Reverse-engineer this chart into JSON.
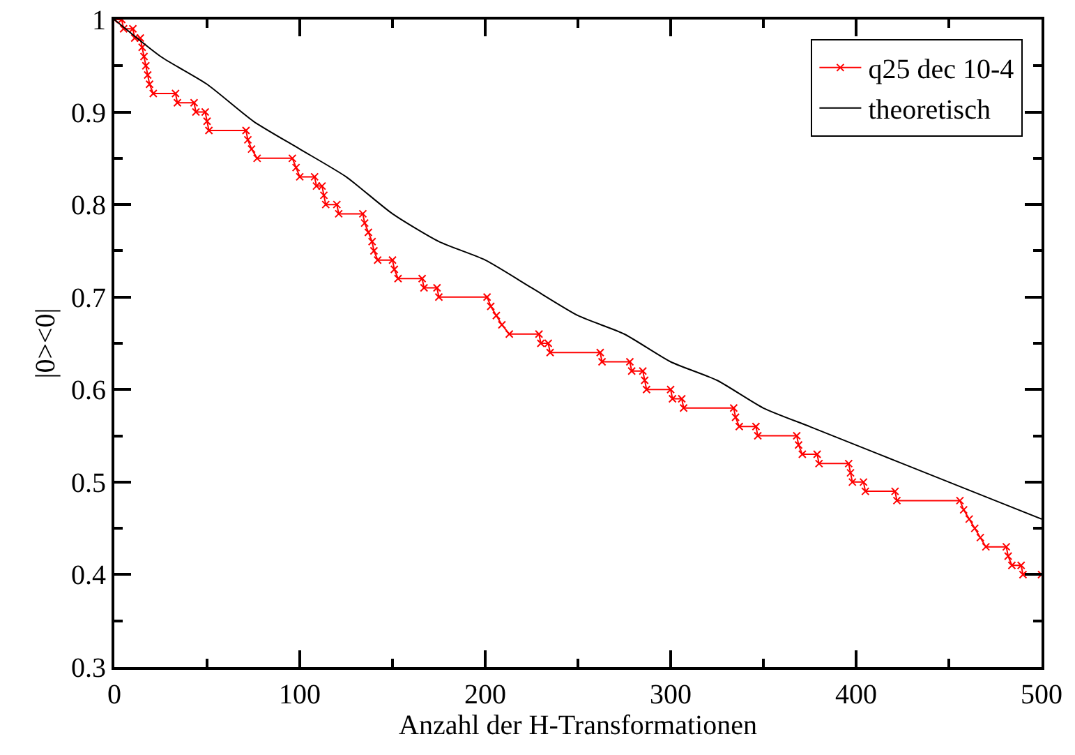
{
  "chart_data": {
    "type": "line",
    "xlabel": "Anzahl der H-Transformationen",
    "ylabel": "|0><0|",
    "xlim": [
      0,
      500
    ],
    "ylim": [
      0.3,
      1
    ],
    "xticks": [
      0,
      {
        "value": 50,
        "label": null
      },
      100,
      {
        "value": 150,
        "label": null
      },
      200,
      {
        "value": 250,
        "label": null
      },
      300,
      {
        "value": 350,
        "label": null
      },
      400,
      {
        "value": 450,
        "label": null
      },
      500
    ],
    "yticks": [
      0.3,
      {
        "value": 0.35,
        "label": null
      },
      0.4,
      {
        "value": 0.45,
        "label": null
      },
      0.5,
      {
        "value": 0.55,
        "label": null
      },
      0.6,
      {
        "value": 0.65,
        "label": null
      },
      0.7,
      {
        "value": 0.75,
        "label": null
      },
      0.8,
      {
        "value": 0.85,
        "label": null
      },
      0.9,
      {
        "value": 0.95,
        "label": null
      },
      1
    ],
    "legend": "top right",
    "series": [
      {
        "name": "q25 dec 10-4",
        "color": "#ff0000",
        "marker": "cross",
        "x": [
          0,
          4,
          5,
          10,
          11,
          14,
          15,
          16,
          17,
          18,
          19,
          21,
          33,
          34,
          43,
          44,
          49,
          50,
          51,
          71,
          72,
          74,
          77,
          96,
          98,
          100,
          108,
          109,
          112,
          113,
          114,
          120,
          121,
          134,
          135,
          137,
          139,
          140,
          142,
          150,
          151,
          153,
          166,
          167,
          174,
          175,
          201,
          203,
          206,
          209,
          213,
          229,
          230,
          234,
          235,
          262,
          263,
          278,
          279,
          285,
          286,
          287,
          300,
          301,
          306,
          307,
          334,
          335,
          337,
          346,
          347,
          368,
          369,
          371,
          379,
          380,
          396,
          397,
          398,
          404,
          405,
          421,
          422,
          456,
          458,
          461,
          464,
          467,
          470,
          481,
          482,
          484,
          489,
          490,
          500
        ],
        "values": [
          1,
          1,
          0.99,
          0.99,
          0.98,
          0.98,
          0.97,
          0.96,
          0.95,
          0.94,
          0.93,
          0.92,
          0.92,
          0.91,
          0.91,
          0.9,
          0.9,
          0.89,
          0.88,
          0.88,
          0.87,
          0.86,
          0.85,
          0.85,
          0.84,
          0.83,
          0.83,
          0.82,
          0.82,
          0.81,
          0.8,
          0.8,
          0.79,
          0.79,
          0.78,
          0.77,
          0.76,
          0.75,
          0.74,
          0.74,
          0.73,
          0.72,
          0.72,
          0.71,
          0.71,
          0.7,
          0.7,
          0.69,
          0.68,
          0.67,
          0.66,
          0.66,
          0.65,
          0.65,
          0.64,
          0.64,
          0.63,
          0.63,
          0.62,
          0.62,
          0.61,
          0.6,
          0.6,
          0.59,
          0.59,
          0.58,
          0.58,
          0.57,
          0.56,
          0.56,
          0.55,
          0.55,
          0.54,
          0.53,
          0.53,
          0.52,
          0.52,
          0.51,
          0.5,
          0.5,
          0.49,
          0.49,
          0.48,
          0.48,
          0.47,
          0.46,
          0.45,
          0.44,
          0.43,
          0.43,
          0.42,
          0.41,
          0.41,
          0.4,
          0.4
        ]
      },
      {
        "name": "theoretisch",
        "color": "#000000",
        "marker": "none",
        "x": [
          0,
          25,
          50,
          75,
          100,
          125,
          150,
          175,
          200,
          225,
          250,
          275,
          300,
          325,
          350,
          375,
          400,
          425,
          450,
          475,
          500
        ],
        "values": [
          1,
          0.96,
          0.93,
          0.89,
          0.86,
          0.83,
          0.79,
          0.76,
          0.74,
          0.71,
          0.68,
          0.66,
          0.63,
          0.61,
          0.58,
          0.56,
          0.54,
          0.52,
          0.5,
          0.48,
          0.46
        ]
      }
    ]
  }
}
